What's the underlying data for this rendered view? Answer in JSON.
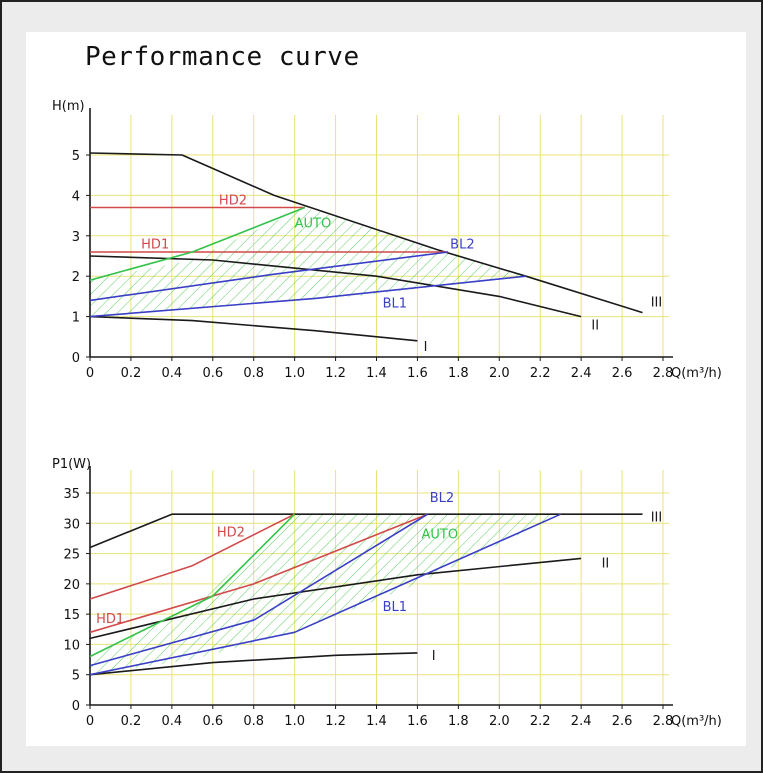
{
  "title": "Performance curve",
  "colors": {
    "grid": "#e8e37a",
    "black": "#1a1a1a",
    "red": "#d24a4a",
    "green": "#35c24a",
    "blue": "#3a3fc6",
    "hatch": "#4fc95a"
  },
  "chart_data": [
    {
      "type": "line",
      "ylabel": "H(m)",
      "xlabel": "Q(m³/h)",
      "xlim": [
        0,
        2.8
      ],
      "ylim": [
        0,
        5
      ],
      "grid": true,
      "xticks": [
        "0",
        "0.2",
        "0.4",
        "0.6",
        "0.8",
        "1.0",
        "1.2",
        "1.4",
        "1.6",
        "1.8",
        "2.0",
        "2.2",
        "2.4",
        "2.6",
        "2.8"
      ],
      "yticks": [
        "0",
        "1",
        "2",
        "3",
        "4",
        "5"
      ],
      "hatched_area": [
        [
          0,
          1
        ],
        [
          0,
          1.4
        ],
        [
          0,
          1.9
        ],
        [
          0.5,
          2.4
        ],
        [
          1.05,
          3.7
        ],
        [
          1.75,
          2.6
        ],
        [
          2.13,
          2.0
        ],
        [
          1.3,
          1.5
        ],
        [
          0.6,
          1.25
        ]
      ],
      "series": [
        {
          "name": "III",
          "color": "black",
          "points": [
            [
              0,
              5.05
            ],
            [
              0.45,
              5.0
            ],
            [
              0.9,
              4.0
            ],
            [
              1.7,
              2.65
            ],
            [
              2.13,
              2.0
            ],
            [
              2.7,
              1.1
            ]
          ]
        },
        {
          "name": "II",
          "color": "black",
          "points": [
            [
              0,
              2.5
            ],
            [
              0.6,
              2.4
            ],
            [
              1.4,
              2.0
            ],
            [
              2.0,
              1.5
            ],
            [
              2.4,
              1.0
            ]
          ]
        },
        {
          "name": "I",
          "color": "black",
          "points": [
            [
              0,
              1.0
            ],
            [
              0.5,
              0.9
            ],
            [
              1.1,
              0.65
            ],
            [
              1.6,
              0.4
            ]
          ]
        },
        {
          "name": "HD2",
          "color": "red",
          "points": [
            [
              0,
              3.7
            ],
            [
              1.05,
              3.7
            ]
          ]
        },
        {
          "name": "HD1",
          "color": "red",
          "points": [
            [
              0,
              2.6
            ],
            [
              1.75,
              2.6
            ]
          ]
        },
        {
          "name": "AUTO",
          "color": "green",
          "points": [
            [
              0,
              1.9
            ],
            [
              0.5,
              2.6
            ],
            [
              1.05,
              3.7
            ]
          ]
        },
        {
          "name": "BL2",
          "color": "blue",
          "points": [
            [
              0,
              1.4
            ],
            [
              0.9,
              2.05
            ],
            [
              1.75,
              2.6
            ]
          ]
        },
        {
          "name": "BL1",
          "color": "blue",
          "points": [
            [
              0,
              1.0
            ],
            [
              1.1,
              1.45
            ],
            [
              2.13,
              2.0
            ]
          ]
        }
      ],
      "labels": [
        {
          "text": "HD2",
          "color": "red",
          "x": 0.63,
          "y": 3.78
        },
        {
          "text": "HD1",
          "color": "red",
          "x": 0.25,
          "y": 2.68
        },
        {
          "text": "AUTO",
          "color": "green",
          "x": 1.0,
          "y": 3.2
        },
        {
          "text": "BL2",
          "color": "blue",
          "x": 1.76,
          "y": 2.68
        },
        {
          "text": "BL1",
          "color": "blue",
          "x": 1.43,
          "y": 1.22
        },
        {
          "text": "III",
          "color": "black",
          "x": 2.74,
          "y": 1.25
        },
        {
          "text": "II",
          "color": "black",
          "x": 2.45,
          "y": 0.68
        },
        {
          "text": "I",
          "color": "black",
          "x": 1.63,
          "y": 0.15
        }
      ]
    },
    {
      "type": "line",
      "ylabel": "P1(W)",
      "xlabel": "Q(m³/h)",
      "xlim": [
        0,
        2.8
      ],
      "ylim": [
        0,
        35
      ],
      "grid": true,
      "xticks": [
        "0",
        "0.2",
        "0.4",
        "0.6",
        "0.8",
        "1.0",
        "1.2",
        "1.4",
        "1.6",
        "1.8",
        "2.0",
        "2.2",
        "2.4",
        "2.6",
        "2.8"
      ],
      "yticks": [
        "0",
        "5",
        "10",
        "15",
        "20",
        "25",
        "30",
        "35"
      ],
      "hatched_area": [
        [
          0,
          8
        ],
        [
          0.5,
          16
        ],
        [
          1.0,
          31.5
        ],
        [
          2.3,
          31.5
        ],
        [
          1.6,
          20
        ],
        [
          1.0,
          12
        ],
        [
          0.5,
          7.5
        ],
        [
          0,
          5
        ]
      ],
      "series": [
        {
          "name": "III",
          "color": "black",
          "points": [
            [
              0,
              26
            ],
            [
              0.4,
              31.5
            ],
            [
              2.7,
              31.5
            ]
          ]
        },
        {
          "name": "II",
          "color": "black",
          "points": [
            [
              0,
              11
            ],
            [
              0.8,
              17.5
            ],
            [
              1.6,
              21.5
            ],
            [
              2.4,
              24.2
            ]
          ]
        },
        {
          "name": "I",
          "color": "black",
          "points": [
            [
              0,
              5
            ],
            [
              0.6,
              7
            ],
            [
              1.2,
              8.2
            ],
            [
              1.6,
              8.6
            ]
          ]
        },
        {
          "name": "HD2",
          "color": "red",
          "points": [
            [
              0,
              17.5
            ],
            [
              0.5,
              23
            ],
            [
              1.0,
              31.5
            ]
          ]
        },
        {
          "name": "HD1",
          "color": "red",
          "points": [
            [
              0,
              12
            ],
            [
              0.8,
              20
            ],
            [
              1.65,
              31.5
            ]
          ]
        },
        {
          "name": "AUTO",
          "color": "green",
          "points": [
            [
              0,
              8
            ],
            [
              0.6,
              18
            ],
            [
              1.0,
              31.5
            ]
          ]
        },
        {
          "name": "BL2",
          "color": "blue",
          "points": [
            [
              0,
              6.5
            ],
            [
              0.8,
              14
            ],
            [
              1.65,
              31.5
            ]
          ]
        },
        {
          "name": "BL1",
          "color": "blue",
          "points": [
            [
              0,
              5
            ],
            [
              1.0,
              12
            ],
            [
              2.3,
              31.5
            ]
          ]
        }
      ],
      "labels": [
        {
          "text": "BL2",
          "color": "blue",
          "x": 1.66,
          "y": 33.5
        },
        {
          "text": "HD2",
          "color": "red",
          "x": 0.62,
          "y": 27.8
        },
        {
          "text": "AUTO",
          "color": "green",
          "x": 1.62,
          "y": 27.5
        },
        {
          "text": "HD1",
          "color": "red",
          "x": 0.03,
          "y": 13.5
        },
        {
          "text": "BL1",
          "color": "blue",
          "x": 1.43,
          "y": 15.5
        },
        {
          "text": "III",
          "color": "black",
          "x": 2.74,
          "y": 30.3
        },
        {
          "text": "II",
          "color": "black",
          "x": 2.5,
          "y": 22.7
        },
        {
          "text": "I",
          "color": "black",
          "x": 1.67,
          "y": 7.4
        }
      ]
    }
  ]
}
